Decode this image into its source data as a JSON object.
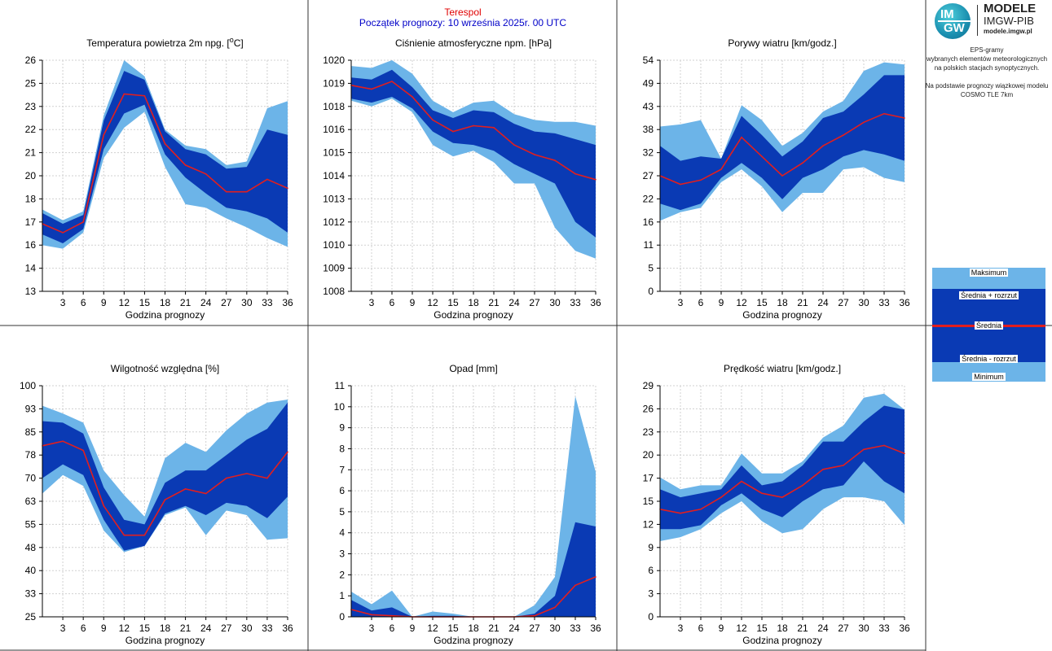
{
  "header": {
    "station": "Terespol",
    "forecast_start": "Początek prognozy: 10 września 2025r. 00 UTC"
  },
  "logo": {
    "line1": "MODELE",
    "line2": "IMGW-PIB",
    "line3": "modele.imgw.pl",
    "badge_top": "IM",
    "badge_bottom": "GW"
  },
  "info": {
    "line1": "EPS-gramy",
    "line2": "wybranych elementów meteorologicznych",
    "line3": "na polskich stacjach  synoptycznych.",
    "line4": "Na podstawie prognozy wiązkowej modelu",
    "line5": "COSMO TLE 7km"
  },
  "legend": {
    "max": "Maksimum",
    "mean_plus": "Średnia + rozrzut",
    "mean": "Średnia",
    "mean_minus": "Średnia - rozrzut",
    "min": "Minimum"
  },
  "colors": {
    "outer_band": "#6cb4e8",
    "inner_band": "#0a3ab4",
    "mean_line": "#e21e1e",
    "grid": "#d0d0d0",
    "station_title": "#e00000",
    "start_title": "#0000c8"
  },
  "chart_data": [
    {
      "type": "area",
      "title": "Temperatura powietrza 2m npg. [°C]",
      "title_main": "Temperatura powietrza 2m npg. [",
      "title_sup": "o",
      "title_end": "C]",
      "xlabel": "Godzina prognozy",
      "x": [
        0,
        3,
        6,
        9,
        12,
        15,
        18,
        21,
        24,
        27,
        30,
        33,
        36
      ],
      "xticks": [
        "3",
        "6",
        "9",
        "12",
        "15",
        "18",
        "21",
        "24",
        "27",
        "30",
        "33",
        "36"
      ],
      "ylim": [
        13,
        26
      ],
      "yticks": [
        "13",
        "14",
        "16",
        "17",
        "18",
        "20",
        "21",
        "22",
        "23",
        "25",
        "26"
      ],
      "min": [
        15.6,
        15.4,
        16.3,
        20.5,
        22.2,
        23.1,
        20.0,
        17.9,
        17.7,
        17.1,
        16.6,
        16.0,
        15.5
      ],
      "mean_minus": [
        16.2,
        15.7,
        16.5,
        21.0,
        23.0,
        23.5,
        20.7,
        19.4,
        18.5,
        17.7,
        17.5,
        17.1,
        16.3
      ],
      "mean": [
        16.8,
        16.3,
        16.9,
        21.8,
        24.1,
        24.0,
        21.3,
        20.1,
        19.6,
        18.6,
        18.6,
        19.3,
        18.8
      ],
      "mean_plus": [
        17.4,
        16.8,
        17.3,
        22.6,
        25.4,
        24.9,
        22.0,
        21.0,
        20.7,
        19.9,
        20.0,
        22.1,
        21.8
      ],
      "max": [
        17.6,
        17.0,
        17.5,
        22.9,
        26.0,
        25.1,
        22.1,
        21.2,
        21.0,
        20.1,
        20.3,
        23.3,
        23.7
      ]
    },
    {
      "type": "area",
      "title": "Ciśnienie atmosferyczne npm. [hPa]",
      "xlabel": "Godzina prognozy",
      "x": [
        0,
        3,
        6,
        9,
        12,
        15,
        18,
        21,
        24,
        27,
        30,
        33,
        36
      ],
      "xticks": [
        "3",
        "6",
        "9",
        "12",
        "15",
        "18",
        "21",
        "24",
        "27",
        "30",
        "33",
        "36"
      ],
      "ylim": [
        1008,
        1020
      ],
      "yticks": [
        "1008",
        "1009",
        "1010",
        "1012",
        "1013",
        "1014",
        "1015",
        "1016",
        "1018",
        "1019",
        "1020"
      ],
      "min": [
        1017.9,
        1017.6,
        1018.0,
        1017.3,
        1015.6,
        1015.0,
        1015.3,
        1014.7,
        1013.6,
        1013.6,
        1011.3,
        1010.1,
        1009.7
      ],
      "mean_minus": [
        1018.0,
        1017.8,
        1018.1,
        1017.5,
        1016.3,
        1015.7,
        1015.6,
        1015.3,
        1014.6,
        1014.1,
        1013.6,
        1011.6,
        1010.8
      ],
      "mean": [
        1018.7,
        1018.5,
        1018.9,
        1018.1,
        1016.9,
        1016.3,
        1016.6,
        1016.5,
        1015.6,
        1015.1,
        1014.8,
        1014.1,
        1013.8
      ],
      "mean_plus": [
        1019.1,
        1019.0,
        1019.5,
        1018.6,
        1017.4,
        1017.0,
        1017.4,
        1017.3,
        1016.7,
        1016.3,
        1016.2,
        1015.9,
        1015.6
      ],
      "max": [
        1019.7,
        1019.6,
        1020.0,
        1019.3,
        1017.9,
        1017.3,
        1017.8,
        1017.9,
        1017.2,
        1016.9,
        1016.8,
        1016.8,
        1016.6
      ]
    },
    {
      "type": "area",
      "title": "Porywy wiatru [km/godz.]",
      "xlabel": "Godzina prognozy",
      "x": [
        0,
        3,
        6,
        9,
        12,
        15,
        18,
        21,
        24,
        27,
        30,
        33,
        36
      ],
      "xticks": [
        "3",
        "6",
        "9",
        "12",
        "15",
        "18",
        "21",
        "24",
        "27",
        "30",
        "33",
        "36"
      ],
      "ylim": [
        0,
        54
      ],
      "yticks": [
        "0",
        "5",
        "11",
        "16",
        "22",
        "27",
        "32",
        "38",
        "43",
        "49",
        "54"
      ],
      "min": [
        16.5,
        18.5,
        19.5,
        25.5,
        28.5,
        24.5,
        18.5,
        23.0,
        23.0,
        28.5,
        29.0,
        26.5,
        25.5
      ],
      "mean_minus": [
        20.5,
        19.0,
        20.5,
        26.5,
        30.0,
        26.5,
        21.5,
        26.5,
        28.5,
        31.5,
        33.0,
        32.0,
        30.5
      ],
      "mean": [
        27.0,
        25.0,
        26.0,
        28.5,
        36.0,
        31.5,
        27.0,
        30.0,
        34.0,
        36.5,
        39.5,
        41.5,
        40.5
      ],
      "mean_plus": [
        34.0,
        30.5,
        31.5,
        31.0,
        41.0,
        36.5,
        31.5,
        35.0,
        40.5,
        42.0,
        46.0,
        50.5,
        50.5
      ],
      "max": [
        38.5,
        39.0,
        40.0,
        31.0,
        43.5,
        40.0,
        34.0,
        37.0,
        42.0,
        44.5,
        51.5,
        53.5,
        53.0
      ]
    },
    {
      "type": "area",
      "title": "Wilgotność względna [%]",
      "xlabel": "Godzina prognozy",
      "x": [
        0,
        3,
        6,
        9,
        12,
        15,
        18,
        21,
        24,
        27,
        30,
        33,
        36
      ],
      "xticks": [
        "3",
        "6",
        "9",
        "12",
        "15",
        "18",
        "21",
        "24",
        "27",
        "30",
        "33",
        "36"
      ],
      "ylim": [
        25,
        100
      ],
      "yticks": [
        "25",
        "33",
        "40",
        "48",
        "55",
        "63",
        "70",
        "78",
        "85",
        "93",
        "100"
      ],
      "min": [
        65.0,
        71.0,
        67.5,
        53.0,
        46.0,
        48.0,
        58.0,
        60.5,
        51.5,
        59.5,
        58.0,
        50.0,
        50.5
      ],
      "mean_minus": [
        70.0,
        74.5,
        71.0,
        56.5,
        46.5,
        48.0,
        58.5,
        61.0,
        58.0,
        62.0,
        61.0,
        57.0,
        64.0
      ],
      "mean": [
        80.5,
        82.0,
        79.0,
        61.0,
        51.5,
        51.5,
        63.0,
        66.5,
        65.0,
        70.0,
        71.5,
        70.0,
        78.5
      ],
      "mean_plus": [
        88.5,
        88.0,
        84.5,
        67.0,
        56.5,
        55.0,
        68.5,
        72.5,
        72.5,
        77.5,
        82.5,
        86.0,
        94.5
      ],
      "max": [
        93.5,
        91.0,
        88.0,
        72.5,
        64.5,
        57.5,
        76.5,
        81.5,
        78.5,
        85.5,
        91.0,
        94.5,
        95.5
      ]
    },
    {
      "type": "area",
      "title": "Opad [mm]",
      "xlabel": "Godzina prognozy",
      "x": [
        0,
        3,
        6,
        9,
        12,
        15,
        18,
        21,
        24,
        27,
        30,
        33,
        36
      ],
      "xticks": [
        "3",
        "6",
        "9",
        "12",
        "15",
        "18",
        "21",
        "24",
        "27",
        "30",
        "33",
        "36"
      ],
      "ylim": [
        0,
        11
      ],
      "yticks": [
        "0",
        "1",
        "2",
        "3",
        "4",
        "5",
        "6",
        "7",
        "8",
        "9",
        "10",
        "11"
      ],
      "min": [
        0,
        0,
        0,
        0,
        0,
        0,
        0,
        0,
        0,
        0,
        0,
        0,
        0
      ],
      "mean_minus": [
        0,
        0,
        0,
        0,
        0,
        0,
        0,
        0,
        0,
        0,
        0,
        0,
        0
      ],
      "mean": [
        0.35,
        0.1,
        0.05,
        0,
        0,
        0,
        0,
        0,
        0,
        0.05,
        0.45,
        1.5,
        1.9
      ],
      "mean_plus": [
        0.8,
        0.3,
        0.45,
        0,
        0.05,
        0.05,
        0,
        0,
        0,
        0.15,
        1.0,
        4.5,
        4.3
      ],
      "max": [
        1.2,
        0.6,
        1.25,
        0,
        0.25,
        0.15,
        0,
        0,
        0,
        0.55,
        1.9,
        10.5,
        6.9
      ]
    },
    {
      "type": "area",
      "title": "Prędkość wiatru [km/godz.]",
      "xlabel": "Godzina prognozy",
      "x": [
        0,
        3,
        6,
        9,
        12,
        15,
        18,
        21,
        24,
        27,
        30,
        33,
        36
      ],
      "xticks": [
        "3",
        "6",
        "9",
        "12",
        "15",
        "18",
        "21",
        "24",
        "27",
        "30",
        "33",
        "36"
      ],
      "ylim": [
        0,
        29
      ],
      "yticks": [
        "0",
        "3",
        "6",
        "9",
        "12",
        "15",
        "17",
        "20",
        "23",
        "26",
        "29"
      ],
      "min": [
        9.5,
        10.0,
        11.0,
        13.0,
        14.5,
        12.0,
        10.5,
        11.0,
        13.5,
        15.0,
        15.0,
        14.5,
        11.5
      ],
      "mean_minus": [
        11.0,
        11.0,
        11.5,
        14.0,
        15.5,
        13.5,
        12.5,
        14.5,
        16.0,
        16.5,
        19.5,
        17.0,
        15.5
      ],
      "mean": [
        13.5,
        13.0,
        13.5,
        15.0,
        17.0,
        15.5,
        15.0,
        16.5,
        18.5,
        19.0,
        21.0,
        21.5,
        20.5
      ],
      "mean_plus": [
        16.0,
        15.0,
        15.5,
        16.0,
        19.0,
        16.5,
        17.0,
        19.0,
        22.0,
        22.0,
        24.5,
        26.5,
        26.0
      ],
      "max": [
        17.5,
        16.0,
        16.5,
        16.5,
        20.5,
        18.0,
        18.0,
        19.5,
        22.5,
        24.0,
        27.5,
        28.0,
        26.0
      ]
    }
  ]
}
